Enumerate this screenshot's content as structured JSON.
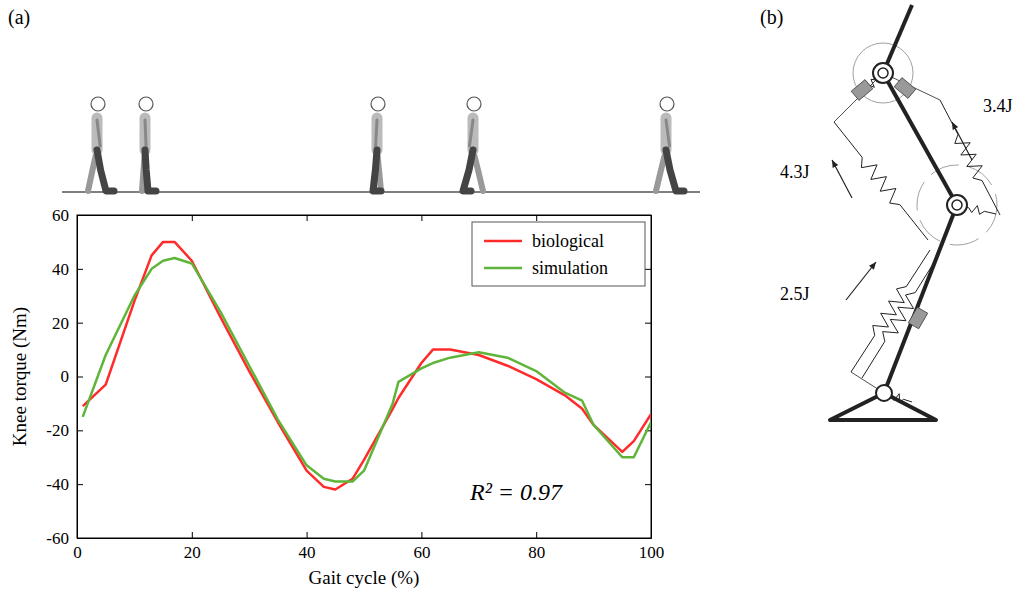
{
  "panels": [
    "(a)",
    "(b)"
  ],
  "chart_data": {
    "type": "line",
    "x_label": "Gait cycle (%)",
    "y_label": "Knee torque (Nm)",
    "x": [
      1,
      5,
      10,
      13,
      15,
      17,
      20,
      25,
      30,
      35,
      40,
      43,
      45,
      48,
      50,
      55,
      56,
      60,
      62,
      65,
      70,
      75,
      80,
      85,
      88,
      90,
      95,
      97,
      100
    ],
    "series": [
      {
        "name": "biological",
        "color": "#ff2b2b",
        "values": [
          -11,
          -3,
          28,
          45,
          50,
          50,
          43,
          22,
          2,
          -17,
          -35,
          -41,
          -42,
          -38,
          -31,
          -12,
          -8,
          5,
          10,
          10,
          8,
          4,
          -1,
          -7,
          -12,
          -18,
          -28,
          -24,
          -14
        ]
      },
      {
        "name": "simulation",
        "color": "#5fb53a",
        "values": [
          -15,
          8,
          30,
          40,
          43,
          44,
          42,
          24,
          4,
          -16,
          -33,
          -38,
          -39,
          -39,
          -35,
          -10,
          -2,
          3,
          5,
          7,
          9,
          7,
          2,
          -6,
          -9,
          -18,
          -30,
          -30,
          -17
        ]
      }
    ],
    "xlim": [
      0,
      100
    ],
    "ylim": [
      -60,
      60
    ],
    "xticks": [
      0,
      20,
      40,
      60,
      80,
      100
    ],
    "yticks": [
      -60,
      -40,
      -20,
      0,
      20,
      40,
      60
    ],
    "grid": false,
    "legend": "upper right",
    "annotations": [
      {
        "text": "R² = 0.97"
      }
    ]
  },
  "diagram": {
    "energy_labels": [
      "4.3J",
      "3.4J",
      "2.5J"
    ]
  }
}
